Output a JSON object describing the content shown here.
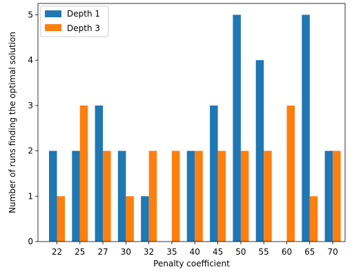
{
  "chart_data": {
    "type": "bar",
    "title": "",
    "xlabel": "Penalty coefficient",
    "ylabel": "Number of runs finding the optimal solution",
    "categories": [
      "22",
      "25",
      "27",
      "30",
      "32",
      "35",
      "40",
      "45",
      "50",
      "55",
      "60",
      "65",
      "70"
    ],
    "series": [
      {
        "name": "Depth 1",
        "color": "#1f77b4",
        "values": [
          2,
          2,
          3,
          2,
          1,
          0,
          2,
          3,
          5,
          4,
          0,
          5,
          2
        ]
      },
      {
        "name": "Depth 3",
        "color": "#ff7f0e",
        "values": [
          1,
          3,
          2,
          1,
          2,
          2,
          2,
          2,
          2,
          2,
          3,
          1,
          2
        ]
      }
    ],
    "ylim": [
      0,
      5.25
    ],
    "yticks": [
      0,
      1,
      2,
      3,
      4,
      5
    ],
    "grid": false,
    "legend_position": "top-left"
  }
}
